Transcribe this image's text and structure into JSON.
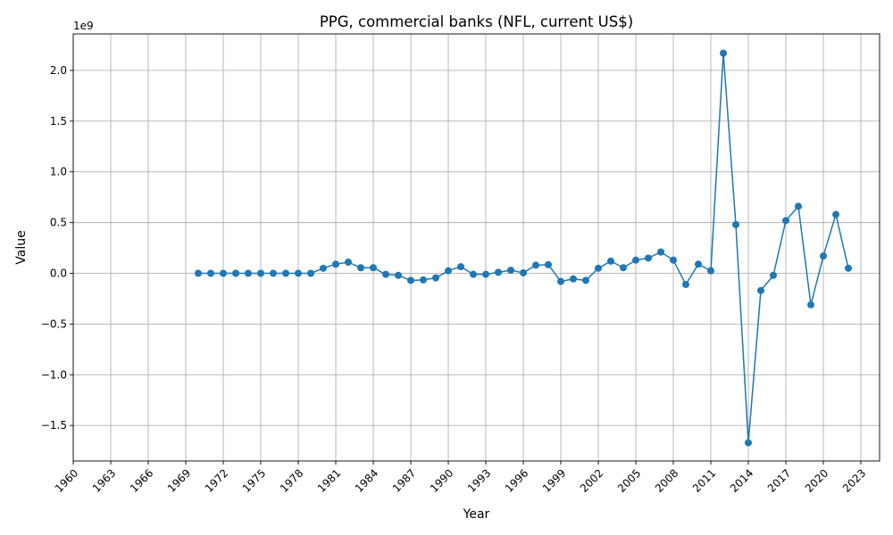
{
  "chart_data": {
    "type": "line",
    "title": "PPG, commercial banks (NFL, current US$)",
    "xlabel": "Year",
    "ylabel": "Value",
    "y_scale_label": "1e9",
    "xlim": [
      1960,
      2024.5
    ],
    "ylim": [
      -1.85,
      2.36
    ],
    "x_ticks": [
      1960,
      1963,
      1966,
      1969,
      1972,
      1975,
      1978,
      1981,
      1984,
      1987,
      1990,
      1993,
      1996,
      1999,
      2002,
      2005,
      2008,
      2011,
      2014,
      2017,
      2020,
      2023
    ],
    "x_tick_labels": [
      "1960",
      "1963",
      "1966",
      "1969",
      "1972",
      "1975",
      "1978",
      "1981",
      "1984",
      "1987",
      "1990",
      "1993",
      "1996",
      "1999",
      "2002",
      "2005",
      "2008",
      "2011",
      "2014",
      "2017",
      "2020",
      "2023"
    ],
    "y_ticks": [
      -1.5,
      -1.0,
      -0.5,
      0.0,
      0.5,
      1.0,
      1.5,
      2.0
    ],
    "y_tick_labels": [
      "−1.5",
      "−1.0",
      "−0.5",
      "0.0",
      "0.5",
      "1.0",
      "1.5",
      "2.0"
    ],
    "grid": true,
    "color": "#1f77b4",
    "series": [
      {
        "x": [
          1970,
          1971,
          1972,
          1973,
          1974,
          1975,
          1976,
          1977,
          1978,
          1979,
          1980,
          1981,
          1982,
          1983,
          1984,
          1985,
          1986,
          1987,
          1988,
          1989,
          1990,
          1991,
          1992,
          1993,
          1994,
          1995,
          1996,
          1997,
          1998,
          1999,
          2000,
          2001,
          2002,
          2003,
          2004,
          2005,
          2006,
          2007,
          2008,
          2009,
          2010,
          2011,
          2012,
          2013,
          2014,
          2015,
          2016,
          2017,
          2018,
          2019,
          2020,
          2021,
          2022
        ],
        "values": [
          0.0,
          0.0,
          0.0,
          0.0,
          0.0,
          0.0,
          0.0,
          0.0,
          0.0,
          0.0,
          0.05,
          0.09,
          0.11,
          0.055,
          0.055,
          -0.01,
          -0.02,
          -0.07,
          -0.065,
          -0.045,
          0.025,
          0.065,
          -0.01,
          -0.01,
          0.01,
          0.03,
          0.005,
          0.08,
          0.085,
          -0.08,
          -0.055,
          -0.07,
          0.05,
          0.12,
          0.055,
          0.13,
          0.15,
          0.21,
          0.13,
          -0.11,
          0.09,
          0.025,
          2.17,
          0.48,
          -1.67,
          -0.17,
          -0.02,
          0.52,
          0.66,
          -0.31,
          0.17,
          0.58,
          0.05
        ]
      }
    ]
  }
}
